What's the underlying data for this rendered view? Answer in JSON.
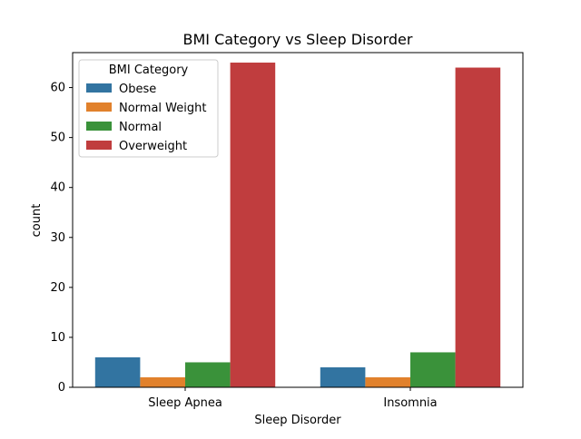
{
  "chart_data": {
    "type": "bar",
    "title": "BMI Category vs Sleep Disorder",
    "xlabel": "Sleep Disorder",
    "ylabel": "count",
    "categories": [
      "Sleep Apnea",
      "Insomnia"
    ],
    "ylim": [
      0,
      67
    ],
    "yticks": [
      "0",
      "10",
      "20",
      "30",
      "40",
      "50",
      "60"
    ],
    "grid": false,
    "legend": {
      "title": "BMI Category",
      "placement": "top-left"
    },
    "series": [
      {
        "name": "Obese",
        "color": "#3274a1",
        "values": [
          6,
          4
        ]
      },
      {
        "name": "Normal Weight",
        "color": "#e1812c",
        "values": [
          2,
          2
        ]
      },
      {
        "name": "Normal",
        "color": "#3a923a",
        "values": [
          5,
          7
        ]
      },
      {
        "name": "Overweight",
        "color": "#c03d3e",
        "values": [
          65,
          64
        ]
      }
    ]
  }
}
